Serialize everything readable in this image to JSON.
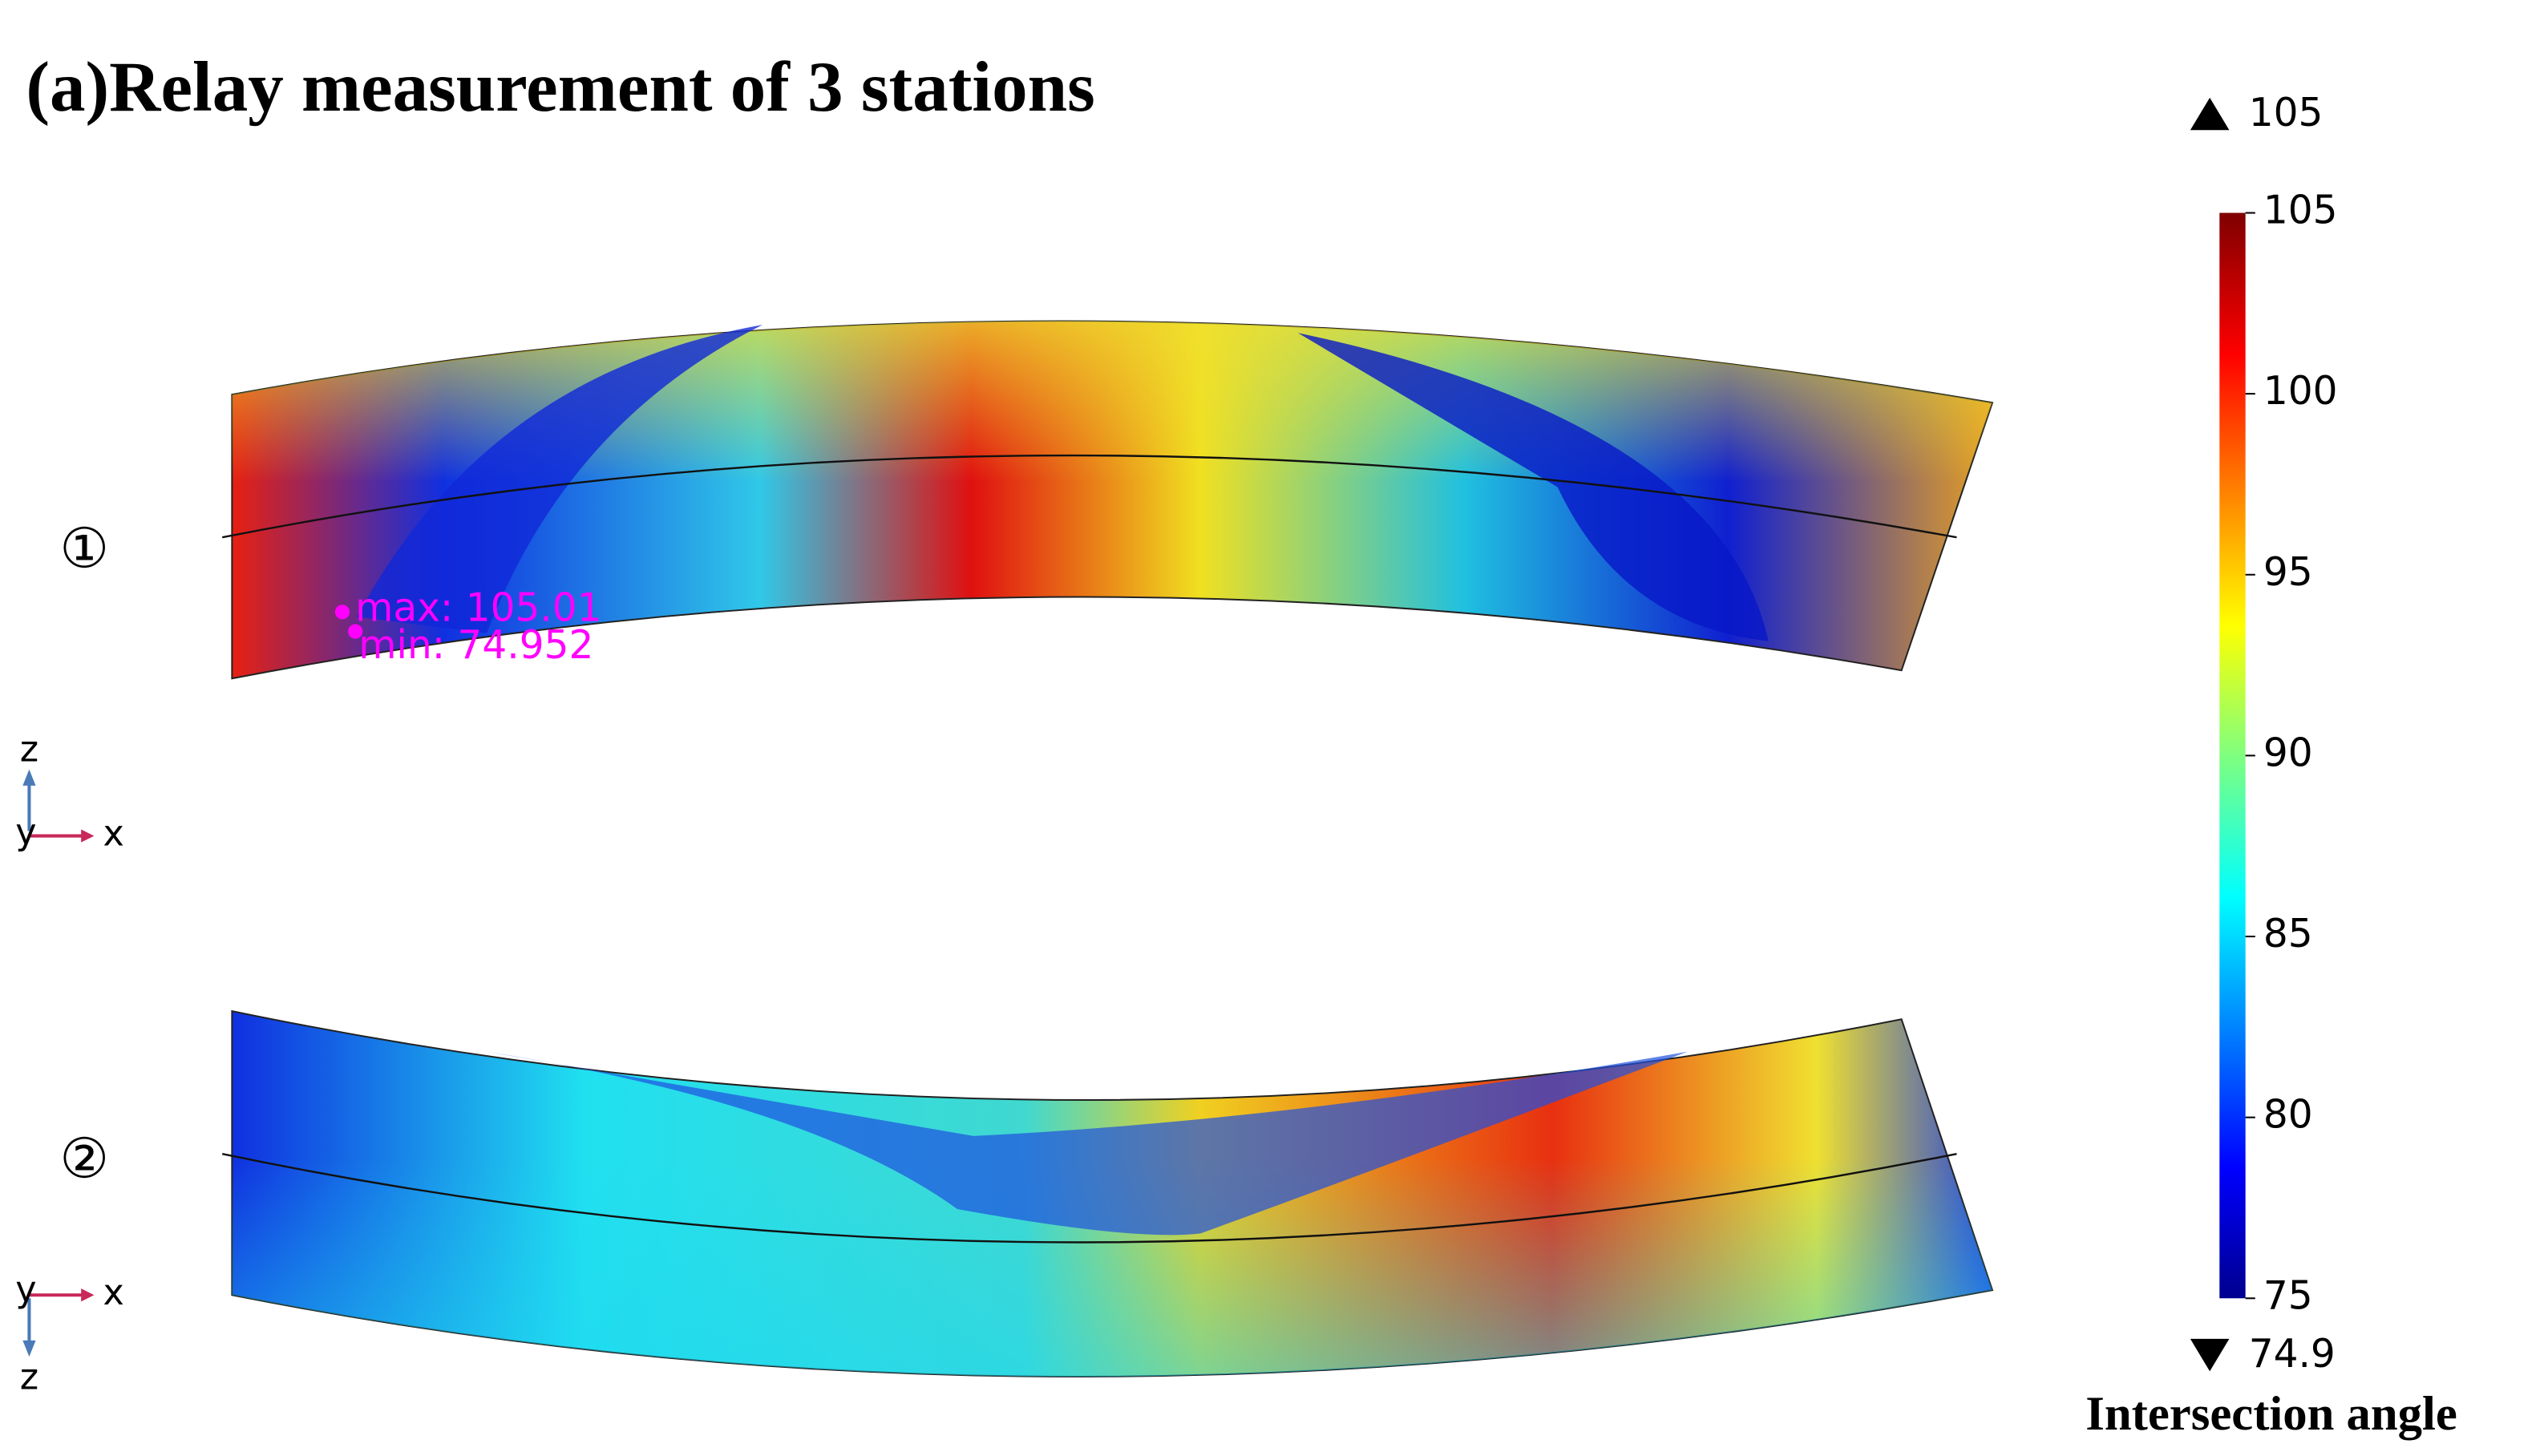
{
  "title": "(a)Relay measurement of 3 stations",
  "colorbar": {
    "max_label": "105",
    "min_label": "74.9",
    "lim": [
      75,
      105
    ],
    "ticks": [
      75,
      80,
      85,
      90,
      95,
      100,
      105
    ],
    "label": "Intersection angle"
  },
  "panels": [
    {
      "label": "①",
      "annotations": [
        "max: 105.01",
        "min: 74.952"
      ],
      "axes": {
        "up": "z",
        "right": "x",
        "out": "y"
      }
    },
    {
      "label": "②",
      "axes": {
        "out": "y",
        "right": "x",
        "down": "z"
      }
    }
  ]
}
